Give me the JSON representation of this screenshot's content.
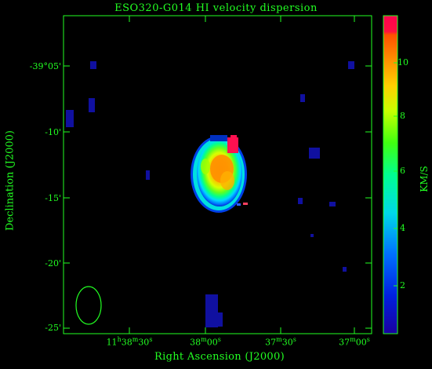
{
  "title": "ESO320-G014   HI velocity dispersion",
  "xlabel": "Right Ascension (J2000)",
  "ylabel": "Declination (J2000)",
  "colorbar": {
    "label": "KM/S",
    "ticks": [
      "2",
      "4",
      "6",
      "8",
      "10"
    ],
    "colors": [
      "#0000a0",
      "#0060ff",
      "#00e0e0",
      "#00ff80",
      "#60ff00",
      "#e0ff00",
      "#ffc000",
      "#ff7000",
      "#ff1040"
    ]
  },
  "y_ticks": [
    "-39°05'",
    "-10'",
    "-15'",
    "-20'",
    "-25'"
  ],
  "x_ticks": [
    {
      "main": "11",
      "h": "h",
      "min": "38",
      "m": "m",
      "sec": "30",
      "s": "s"
    },
    {
      "main": "",
      "h": "",
      "min": "38",
      "m": "m",
      "sec": "00",
      "s": "s"
    },
    {
      "main": "",
      "h": "",
      "min": "37",
      "m": "m",
      "sec": "30",
      "s": "s"
    },
    {
      "main": "",
      "h": "",
      "min": "37",
      "m": "m",
      "sec": "00",
      "s": "s"
    }
  ],
  "colors": {
    "axis": "#22ff22",
    "background": "#000000"
  }
}
